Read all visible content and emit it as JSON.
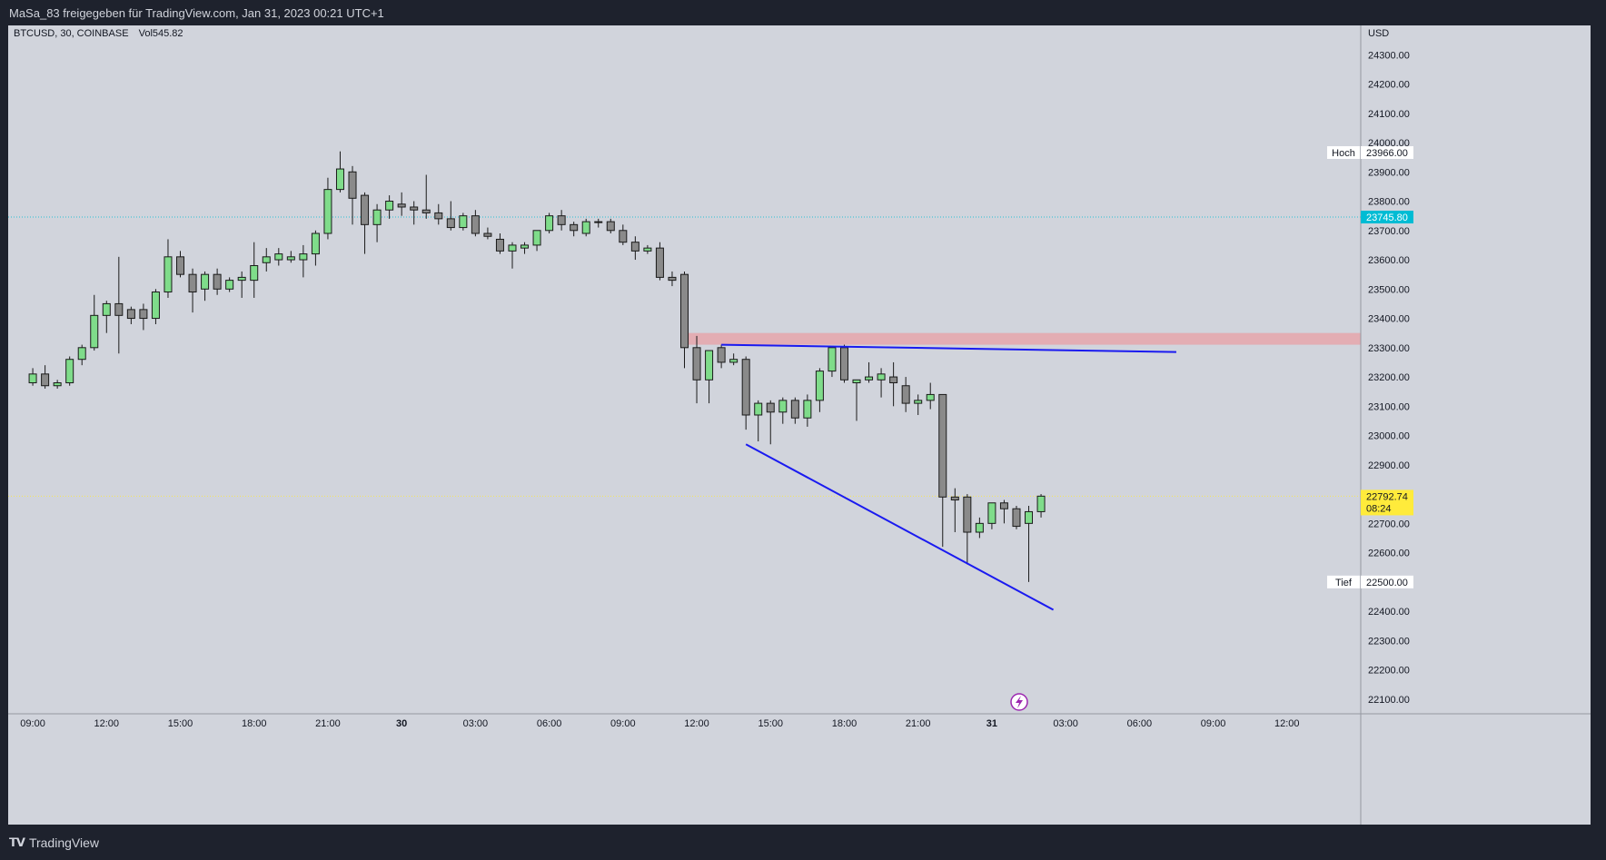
{
  "header": {
    "share_text": "MaSa_83 freigegeben für TradingView.com, Jan 31, 2023 00:21 UTC+1"
  },
  "legend": {
    "symbol": "BTCUSD, 30, COINBASE",
    "volume": "Vol545.82"
  },
  "footer": {
    "brand": "TradingView",
    "logo_icon": "tradingview-logo-icon"
  },
  "markers": {
    "lightning": "lightning-icon"
  },
  "chart_data": {
    "type": "candlestick",
    "symbol": "BTCUSD",
    "interval": "30",
    "exchange": "COINBASE",
    "currency": "USD",
    "ylim": [
      22050,
      24400
    ],
    "y_ticks": [
      "24300.00",
      "24200.00",
      "24100.00",
      "24000.00",
      "23900.00",
      "23800.00",
      "23700.00",
      "23600.00",
      "23500.00",
      "23400.00",
      "23300.00",
      "23200.00",
      "23100.00",
      "23000.00",
      "22900.00",
      "22800.00",
      "22700.00",
      "22600.00",
      "22500.00",
      "22400.00",
      "22300.00",
      "22200.00",
      "22100.00"
    ],
    "x_ticks": [
      "09:00",
      "12:00",
      "15:00",
      "18:00",
      "21:00",
      "30",
      "03:00",
      "06:00",
      "09:00",
      "12:00",
      "15:00",
      "18:00",
      "21:00",
      "31",
      "03:00",
      "06:00",
      "09:00",
      "12:00"
    ],
    "x_range_hours": [
      -1,
      54
    ],
    "candles": [
      {
        "t": 0.0,
        "o": 23180,
        "h": 23230,
        "l": 23170,
        "c": 23210
      },
      {
        "t": 0.5,
        "o": 23210,
        "h": 23240,
        "l": 23160,
        "c": 23170
      },
      {
        "t": 1.0,
        "o": 23170,
        "h": 23190,
        "l": 23160,
        "c": 23180
      },
      {
        "t": 1.5,
        "o": 23180,
        "h": 23270,
        "l": 23170,
        "c": 23260
      },
      {
        "t": 2.0,
        "o": 23260,
        "h": 23310,
        "l": 23240,
        "c": 23300
      },
      {
        "t": 2.5,
        "o": 23300,
        "h": 23480,
        "l": 23290,
        "c": 23410
      },
      {
        "t": 3.0,
        "o": 23410,
        "h": 23460,
        "l": 23350,
        "c": 23450
      },
      {
        "t": 3.5,
        "o": 23450,
        "h": 23610,
        "l": 23280,
        "c": 23410
      },
      {
        "t": 4.0,
        "o": 23430,
        "h": 23440,
        "l": 23380,
        "c": 23400
      },
      {
        "t": 4.5,
        "o": 23430,
        "h": 23450,
        "l": 23360,
        "c": 23400
      },
      {
        "t": 5.0,
        "o": 23400,
        "h": 23500,
        "l": 23380,
        "c": 23490
      },
      {
        "t": 5.5,
        "o": 23490,
        "h": 23670,
        "l": 23470,
        "c": 23610
      },
      {
        "t": 6.0,
        "o": 23610,
        "h": 23630,
        "l": 23540,
        "c": 23550
      },
      {
        "t": 6.5,
        "o": 23550,
        "h": 23570,
        "l": 23420,
        "c": 23490
      },
      {
        "t": 7.0,
        "o": 23500,
        "h": 23560,
        "l": 23460,
        "c": 23550
      },
      {
        "t": 7.5,
        "o": 23550,
        "h": 23570,
        "l": 23480,
        "c": 23500
      },
      {
        "t": 8.0,
        "o": 23500,
        "h": 23540,
        "l": 23490,
        "c": 23530
      },
      {
        "t": 8.5,
        "o": 23530,
        "h": 23560,
        "l": 23470,
        "c": 23540
      },
      {
        "t": 9.0,
        "o": 23530,
        "h": 23660,
        "l": 23470,
        "c": 23580
      },
      {
        "t": 9.5,
        "o": 23590,
        "h": 23640,
        "l": 23560,
        "c": 23610
      },
      {
        "t": 10.0,
        "o": 23600,
        "h": 23640,
        "l": 23580,
        "c": 23620
      },
      {
        "t": 10.5,
        "o": 23600,
        "h": 23630,
        "l": 23590,
        "c": 23610
      },
      {
        "t": 11.0,
        "o": 23600,
        "h": 23650,
        "l": 23540,
        "c": 23620
      },
      {
        "t": 11.5,
        "o": 23620,
        "h": 23700,
        "l": 23580,
        "c": 23690
      },
      {
        "t": 12.0,
        "o": 23690,
        "h": 23880,
        "l": 23670,
        "c": 23840
      },
      {
        "t": 12.5,
        "o": 23840,
        "h": 23970,
        "l": 23830,
        "c": 23910
      },
      {
        "t": 13.0,
        "o": 23900,
        "h": 23920,
        "l": 23720,
        "c": 23810
      },
      {
        "t": 13.5,
        "o": 23820,
        "h": 23830,
        "l": 23620,
        "c": 23720
      },
      {
        "t": 14.0,
        "o": 23720,
        "h": 23790,
        "l": 23660,
        "c": 23770
      },
      {
        "t": 14.5,
        "o": 23770,
        "h": 23820,
        "l": 23740,
        "c": 23800
      },
      {
        "t": 15.0,
        "o": 23790,
        "h": 23830,
        "l": 23750,
        "c": 23780
      },
      {
        "t": 15.5,
        "o": 23780,
        "h": 23800,
        "l": 23720,
        "c": 23770
      },
      {
        "t": 16.0,
        "o": 23770,
        "h": 23890,
        "l": 23740,
        "c": 23760
      },
      {
        "t": 16.5,
        "o": 23760,
        "h": 23790,
        "l": 23720,
        "c": 23740
      },
      {
        "t": 17.0,
        "o": 23740,
        "h": 23800,
        "l": 23700,
        "c": 23710
      },
      {
        "t": 17.5,
        "o": 23710,
        "h": 23760,
        "l": 23700,
        "c": 23750
      },
      {
        "t": 18.0,
        "o": 23750,
        "h": 23770,
        "l": 23680,
        "c": 23690
      },
      {
        "t": 18.5,
        "o": 23690,
        "h": 23710,
        "l": 23670,
        "c": 23680
      },
      {
        "t": 19.0,
        "o": 23670,
        "h": 23690,
        "l": 23620,
        "c": 23630
      },
      {
        "t": 19.5,
        "o": 23630,
        "h": 23660,
        "l": 23570,
        "c": 23650
      },
      {
        "t": 20.0,
        "o": 23640,
        "h": 23660,
        "l": 23620,
        "c": 23650
      },
      {
        "t": 20.5,
        "o": 23650,
        "h": 23700,
        "l": 23630,
        "c": 23700
      },
      {
        "t": 21.0,
        "o": 23700,
        "h": 23760,
        "l": 23690,
        "c": 23750
      },
      {
        "t": 21.5,
        "o": 23750,
        "h": 23770,
        "l": 23700,
        "c": 23720
      },
      {
        "t": 22.0,
        "o": 23720,
        "h": 23730,
        "l": 23680,
        "c": 23700
      },
      {
        "t": 22.5,
        "o": 23690,
        "h": 23740,
        "l": 23680,
        "c": 23730
      },
      {
        "t": 23.0,
        "o": 23730,
        "h": 23740,
        "l": 23710,
        "c": 23730
      },
      {
        "t": 23.5,
        "o": 23730,
        "h": 23740,
        "l": 23690,
        "c": 23700
      },
      {
        "t": 24.0,
        "o": 23700,
        "h": 23720,
        "l": 23650,
        "c": 23660
      },
      {
        "t": 24.5,
        "o": 23660,
        "h": 23680,
        "l": 23600,
        "c": 23630
      },
      {
        "t": 25.0,
        "o": 23630,
        "h": 23650,
        "l": 23620,
        "c": 23640
      },
      {
        "t": 25.5,
        "o": 23640,
        "h": 23660,
        "l": 23530,
        "c": 23540
      },
      {
        "t": 26.0,
        "o": 23540,
        "h": 23560,
        "l": 23510,
        "c": 23530
      },
      {
        "t": 26.5,
        "o": 23550,
        "h": 23560,
        "l": 23230,
        "c": 23300
      },
      {
        "t": 27.0,
        "o": 23300,
        "h": 23340,
        "l": 23110,
        "c": 23190
      },
      {
        "t": 27.5,
        "o": 23190,
        "h": 23290,
        "l": 23110,
        "c": 23290
      },
      {
        "t": 28.0,
        "o": 23300,
        "h": 23310,
        "l": 23230,
        "c": 23250
      },
      {
        "t": 28.5,
        "o": 23250,
        "h": 23280,
        "l": 23240,
        "c": 23260
      },
      {
        "t": 29.0,
        "o": 23260,
        "h": 23270,
        "l": 23020,
        "c": 23070
      },
      {
        "t": 29.5,
        "o": 23070,
        "h": 23120,
        "l": 22980,
        "c": 23110
      },
      {
        "t": 30.0,
        "o": 23110,
        "h": 23120,
        "l": 22970,
        "c": 23080
      },
      {
        "t": 30.5,
        "o": 23080,
        "h": 23130,
        "l": 23040,
        "c": 23120
      },
      {
        "t": 31.0,
        "o": 23120,
        "h": 23130,
        "l": 23040,
        "c": 23060
      },
      {
        "t": 31.5,
        "o": 23060,
        "h": 23140,
        "l": 23030,
        "c": 23120
      },
      {
        "t": 32.0,
        "o": 23120,
        "h": 23230,
        "l": 23080,
        "c": 23220
      },
      {
        "t": 32.5,
        "o": 23220,
        "h": 23300,
        "l": 23200,
        "c": 23300
      },
      {
        "t": 33.0,
        "o": 23300,
        "h": 23310,
        "l": 23180,
        "c": 23190
      },
      {
        "t": 33.5,
        "o": 23180,
        "h": 23190,
        "l": 23050,
        "c": 23190
      },
      {
        "t": 34.0,
        "o": 23190,
        "h": 23250,
        "l": 23180,
        "c": 23200
      },
      {
        "t": 34.5,
        "o": 23190,
        "h": 23230,
        "l": 23130,
        "c": 23210
      },
      {
        "t": 35.0,
        "o": 23200,
        "h": 23250,
        "l": 23100,
        "c": 23180
      },
      {
        "t": 35.5,
        "o": 23170,
        "h": 23200,
        "l": 23080,
        "c": 23110
      },
      {
        "t": 36.0,
        "o": 23110,
        "h": 23140,
        "l": 23070,
        "c": 23120
      },
      {
        "t": 36.5,
        "o": 23120,
        "h": 23180,
        "l": 23090,
        "c": 23140
      },
      {
        "t": 37.0,
        "o": 23140,
        "h": 23140,
        "l": 22620,
        "c": 22790
      },
      {
        "t": 37.5,
        "o": 22790,
        "h": 22820,
        "l": 22670,
        "c": 22780
      },
      {
        "t": 38.0,
        "o": 22790,
        "h": 22800,
        "l": 22560,
        "c": 22670
      },
      {
        "t": 38.5,
        "o": 22670,
        "h": 22720,
        "l": 22650,
        "c": 22700
      },
      {
        "t": 39.0,
        "o": 22700,
        "h": 22770,
        "l": 22680,
        "c": 22770
      },
      {
        "t": 39.5,
        "o": 22770,
        "h": 22780,
        "l": 22700,
        "c": 22750
      },
      {
        "t": 40.0,
        "o": 22750,
        "h": 22760,
        "l": 22680,
        "c": 22690
      },
      {
        "t": 40.5,
        "o": 22700,
        "h": 22760,
        "l": 22500,
        "c": 22740
      },
      {
        "t": 41.0,
        "o": 22740,
        "h": 22800,
        "l": 22720,
        "c": 22793
      }
    ],
    "levels": [
      {
        "label": "Hoch",
        "value": "23966.00",
        "price": 23966,
        "color": "#ffffff"
      },
      {
        "label": "",
        "value": "23745.80",
        "price": 23745.8,
        "color": "#00bcd4"
      },
      {
        "label": "",
        "value": "22792.74",
        "sub": "08:24",
        "price": 22792.74,
        "color": "#ffeb3b"
      },
      {
        "label": "Tief",
        "value": "22500.00",
        "price": 22500,
        "color": "#ffffff"
      }
    ],
    "zone": {
      "from_hour": 26.5,
      "price_low": 23310,
      "price_high": 23350,
      "color": "#e8a0a6"
    },
    "trendlines": [
      {
        "t1": 28.0,
        "p1": 23310,
        "t2": 46.5,
        "p2": 23285,
        "color": "#1a1af0"
      },
      {
        "t1": 29.0,
        "p1": 22970,
        "t2": 41.5,
        "p2": 22405,
        "color": "#1a1af0"
      }
    ],
    "colors": {
      "up": "#7fdc8a",
      "down": "#8a8a8a",
      "wick": "#1a1a1a",
      "background": "#d1d4dc",
      "text": "#131722"
    }
  }
}
